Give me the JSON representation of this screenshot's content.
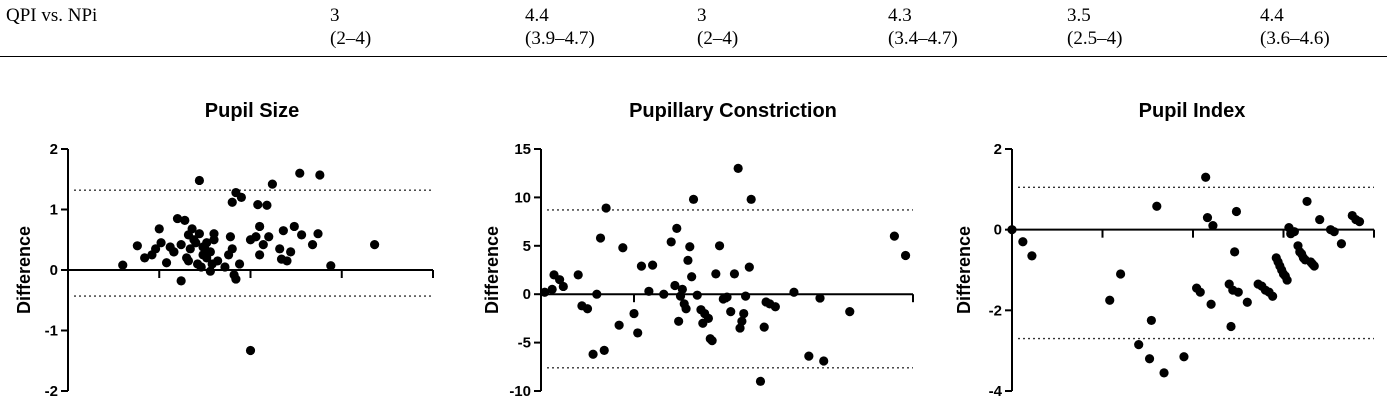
{
  "table": {
    "row_label": "QPI vs. NPi",
    "cells": [
      {
        "value": "3",
        "range": "(2–4)"
      },
      {
        "value": "4.4",
        "range": "(3.9–4.7)"
      },
      {
        "value": "3",
        "range": "(2–4)"
      },
      {
        "value": "4.3",
        "range": "(3.4–4.7)"
      },
      {
        "value": "3.5",
        "range": "(2.5–4)"
      },
      {
        "value": "4.4",
        "range": "(3.6–4.6)"
      }
    ]
  },
  "chart_data": [
    {
      "type": "scatter",
      "title": "Pupil Size",
      "ylabel": "Difference",
      "xlabel": "",
      "ylim": [
        -2,
        2
      ],
      "xlim": [
        0,
        10
      ],
      "yticks": [
        -2,
        -1,
        0,
        1,
        2
      ],
      "ytick_labels": [
        "-2",
        "-1",
        "0",
        "1",
        "2"
      ],
      "xticks": [
        0,
        2.5,
        5,
        7.5,
        10
      ],
      "limits_of_agreement": [
        1.32,
        -0.43
      ],
      "points": [
        [
          1.5,
          0.08
        ],
        [
          1.9,
          0.4
        ],
        [
          2.1,
          0.2
        ],
        [
          2.3,
          0.25
        ],
        [
          2.4,
          0.35
        ],
        [
          2.5,
          0.68
        ],
        [
          2.55,
          0.45
        ],
        [
          2.7,
          0.12
        ],
        [
          2.8,
          0.38
        ],
        [
          2.9,
          0.3
        ],
        [
          3.0,
          0.85
        ],
        [
          2.9,
          0.3
        ],
        [
          3.1,
          0.42
        ],
        [
          3.2,
          0.82
        ],
        [
          3.3,
          0.58
        ],
        [
          3.25,
          0.2
        ],
        [
          3.35,
          0.35
        ],
        [
          3.4,
          0.68
        ],
        [
          3.5,
          0.45
        ],
        [
          3.6,
          0.6
        ],
        [
          3.7,
          0.38
        ],
        [
          3.8,
          0.45
        ],
        [
          3.9,
          0.3
        ],
        [
          4.0,
          0.5
        ],
        [
          3.1,
          -0.18
        ],
        [
          3.3,
          0.15
        ],
        [
          3.45,
          0.5
        ],
        [
          3.55,
          0.1
        ],
        [
          3.65,
          0.05
        ],
        [
          3.75,
          0.35
        ],
        [
          3.8,
          0.2
        ],
        [
          3.95,
          0.1
        ],
        [
          4.0,
          0.6
        ],
        [
          3.9,
          -0.02
        ],
        [
          4.1,
          0.15
        ],
        [
          4.3,
          0.05
        ],
        [
          4.4,
          0.25
        ],
        [
          4.45,
          0.55
        ],
        [
          4.5,
          0.35
        ],
        [
          4.55,
          -0.08
        ],
        [
          4.6,
          -0.15
        ],
        [
          4.7,
          0.1
        ],
        [
          3.7,
          0.25
        ],
        [
          3.6,
          1.48
        ],
        [
          4.5,
          1.12
        ],
        [
          4.6,
          1.28
        ],
        [
          4.75,
          1.2
        ],
        [
          5.0,
          0.5
        ],
        [
          5.15,
          0.55
        ],
        [
          5.25,
          0.25
        ],
        [
          5.35,
          0.42
        ],
        [
          5.2,
          1.08
        ],
        [
          5.45,
          1.07
        ],
        [
          5.5,
          0.55
        ],
        [
          5.0,
          -1.33
        ],
        [
          5.25,
          0.72
        ],
        [
          5.6,
          1.42
        ],
        [
          5.8,
          0.35
        ],
        [
          5.85,
          0.18
        ],
        [
          5.9,
          0.65
        ],
        [
          6.0,
          0.15
        ],
        [
          6.1,
          0.3
        ],
        [
          6.2,
          0.72
        ],
        [
          6.35,
          1.6
        ],
        [
          6.4,
          0.58
        ],
        [
          6.7,
          0.42
        ],
        [
          6.85,
          0.6
        ],
        [
          6.9,
          1.57
        ],
        [
          7.2,
          0.07
        ],
        [
          8.4,
          0.42
        ]
      ]
    },
    {
      "type": "scatter",
      "title": "Pupillary Constriction",
      "ylabel": "Difference",
      "xlabel": "",
      "ylim": [
        -10,
        15
      ],
      "xlim": [
        0,
        10
      ],
      "yticks": [
        -10,
        -5,
        0,
        5,
        10,
        15
      ],
      "ytick_labels": [
        "-10",
        "-5",
        "0",
        "5",
        "10",
        "15"
      ],
      "xticks": [
        0,
        2.5,
        5,
        7.5,
        10
      ],
      "limits_of_agreement": [
        8.7,
        -7.6
      ],
      "points": [
        [
          0.1,
          0.2
        ],
        [
          0.3,
          0.5
        ],
        [
          0.35,
          2.0
        ],
        [
          0.5,
          1.5
        ],
        [
          0.6,
          0.8
        ],
        [
          1.0,
          2.0
        ],
        [
          1.1,
          -1.2
        ],
        [
          1.25,
          -1.5
        ],
        [
          1.4,
          -6.2
        ],
        [
          1.5,
          0.0
        ],
        [
          1.6,
          5.8
        ],
        [
          1.7,
          -5.8
        ],
        [
          1.75,
          8.9
        ],
        [
          2.1,
          -3.2
        ],
        [
          2.2,
          4.8
        ],
        [
          2.5,
          -2.0
        ],
        [
          2.6,
          -4.0
        ],
        [
          2.7,
          2.9
        ],
        [
          2.9,
          0.3
        ],
        [
          3.0,
          3.0
        ],
        [
          3.3,
          0.0
        ],
        [
          3.5,
          5.4
        ],
        [
          3.6,
          0.9
        ],
        [
          3.65,
          6.8
        ],
        [
          3.7,
          -2.8
        ],
        [
          3.75,
          -0.2
        ],
        [
          3.8,
          0.5
        ],
        [
          3.85,
          -1.0
        ],
        [
          3.9,
          -1.5
        ],
        [
          3.95,
          3.5
        ],
        [
          4.0,
          4.9
        ],
        [
          4.05,
          1.8
        ],
        [
          4.1,
          9.8
        ],
        [
          4.2,
          -0.1
        ],
        [
          4.3,
          -1.6
        ],
        [
          4.35,
          -3.0
        ],
        [
          4.4,
          -2.0
        ],
        [
          4.5,
          -2.5
        ],
        [
          4.55,
          -4.6
        ],
        [
          4.6,
          -4.8
        ],
        [
          4.7,
          2.1
        ],
        [
          4.8,
          5.0
        ],
        [
          4.9,
          -0.5
        ],
        [
          5.0,
          -0.3
        ],
        [
          5.1,
          -1.8
        ],
        [
          5.2,
          2.1
        ],
        [
          5.3,
          13.0
        ],
        [
          5.35,
          -3.5
        ],
        [
          5.4,
          -2.8
        ],
        [
          5.45,
          -2.0
        ],
        [
          5.5,
          -0.2
        ],
        [
          5.6,
          2.8
        ],
        [
          5.65,
          9.8
        ],
        [
          5.9,
          -9.0
        ],
        [
          6.0,
          -3.4
        ],
        [
          6.05,
          -0.8
        ],
        [
          6.15,
          -1.0
        ],
        [
          6.3,
          -1.3
        ],
        [
          6.8,
          0.2
        ],
        [
          7.2,
          -6.4
        ],
        [
          7.5,
          -0.4
        ],
        [
          7.6,
          -6.9
        ],
        [
          8.3,
          -1.8
        ],
        [
          9.5,
          6.0
        ],
        [
          9.8,
          4.0
        ]
      ]
    },
    {
      "type": "scatter",
      "title": "Pupil Index",
      "ylabel": "Difference",
      "xlabel": "",
      "ylim": [
        -4,
        2
      ],
      "xlim": [
        0,
        10
      ],
      "yticks": [
        -4,
        -2,
        0,
        2
      ],
      "ytick_labels": [
        "-4",
        "-2",
        "0",
        "2"
      ],
      "xticks": [
        0,
        2.5,
        5,
        7.5,
        10
      ],
      "limits_of_agreement": [
        1.05,
        -2.7
      ],
      "points": [
        [
          0.0,
          0.0
        ],
        [
          0.3,
          -0.3
        ],
        [
          0.55,
          -0.65
        ],
        [
          2.7,
          -1.75
        ],
        [
          3.0,
          -1.1
        ],
        [
          3.5,
          -2.85
        ],
        [
          3.8,
          -3.2
        ],
        [
          3.85,
          -2.25
        ],
        [
          4.0,
          0.58
        ],
        [
          4.2,
          -3.55
        ],
        [
          4.75,
          -3.15
        ],
        [
          5.1,
          -1.45
        ],
        [
          5.2,
          -1.55
        ],
        [
          5.35,
          1.3
        ],
        [
          5.4,
          0.3
        ],
        [
          5.5,
          -1.85
        ],
        [
          5.55,
          0.1
        ],
        [
          6.0,
          -1.35
        ],
        [
          6.05,
          -2.4
        ],
        [
          6.1,
          -1.5
        ],
        [
          6.15,
          -0.55
        ],
        [
          6.2,
          0.45
        ],
        [
          6.25,
          -1.55
        ],
        [
          6.5,
          -1.8
        ],
        [
          6.8,
          -1.35
        ],
        [
          6.9,
          -1.4
        ],
        [
          7.0,
          -1.5
        ],
        [
          7.1,
          -1.55
        ],
        [
          7.2,
          -1.65
        ],
        [
          7.3,
          -0.7
        ],
        [
          7.35,
          -0.8
        ],
        [
          7.4,
          -0.9
        ],
        [
          7.45,
          -1.0
        ],
        [
          7.5,
          -1.1
        ],
        [
          7.55,
          -1.15
        ],
        [
          7.6,
          -1.25
        ],
        [
          7.65,
          0.05
        ],
        [
          7.7,
          -0.1
        ],
        [
          7.8,
          -0.05
        ],
        [
          7.9,
          -0.4
        ],
        [
          7.95,
          -0.55
        ],
        [
          8.0,
          -0.6
        ],
        [
          8.05,
          -0.7
        ],
        [
          8.1,
          -0.75
        ],
        [
          8.15,
          0.7
        ],
        [
          8.25,
          -0.8
        ],
        [
          8.3,
          -0.85
        ],
        [
          8.35,
          -0.9
        ],
        [
          8.5,
          0.25
        ],
        [
          8.8,
          0.0
        ],
        [
          8.9,
          -0.05
        ],
        [
          9.1,
          -0.35
        ],
        [
          9.4,
          0.35
        ],
        [
          9.5,
          0.25
        ],
        [
          9.6,
          0.2
        ]
      ]
    }
  ]
}
